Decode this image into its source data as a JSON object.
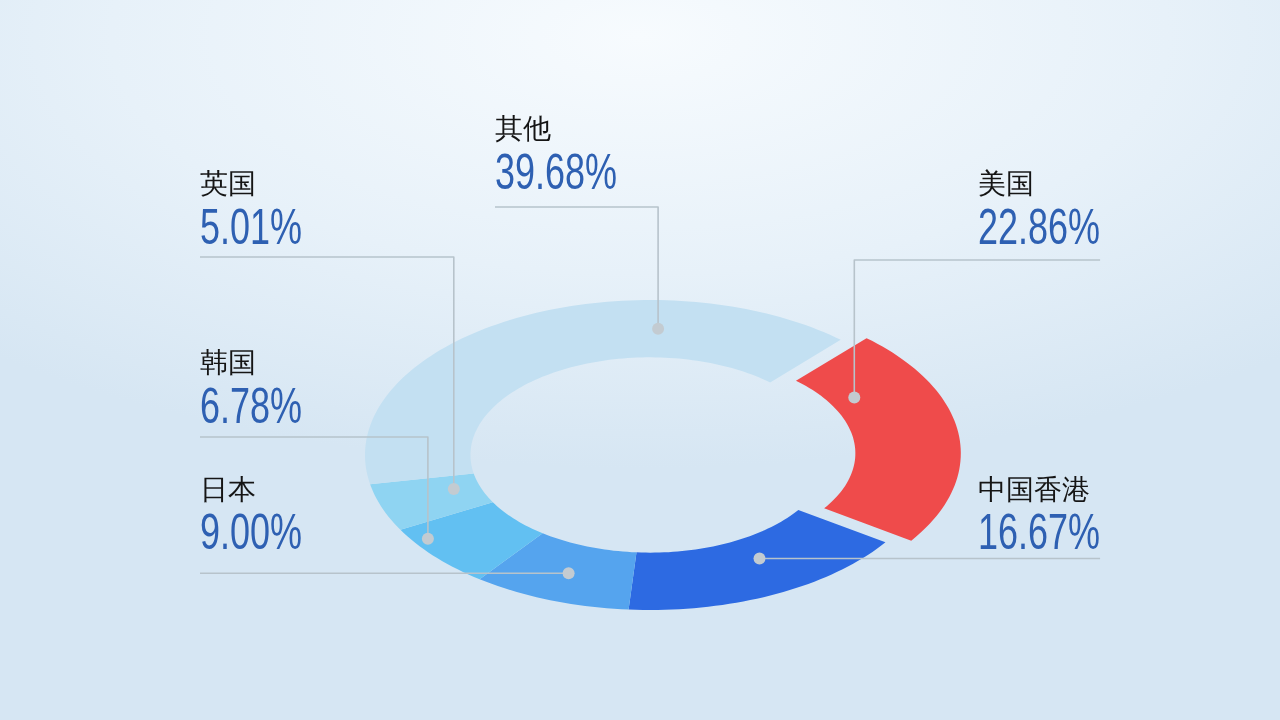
{
  "chart_data": {
    "type": "donut",
    "categories": [
      "美国",
      "中国香港",
      "日本",
      "韩国",
      "英国",
      "其他"
    ],
    "values": [
      22.86,
      16.67,
      9.0,
      6.78,
      5.01,
      39.68
    ],
    "colors": [
      "#ef4b4b",
      "#2d6ae2",
      "#55a4ee",
      "#62c0f2",
      "#8fd4f2",
      "#c3e0f2"
    ],
    "value_labels": [
      "22.86%",
      "16.67%",
      "9.00%",
      "6.78%",
      "5.01%",
      "39.68%"
    ]
  }
}
